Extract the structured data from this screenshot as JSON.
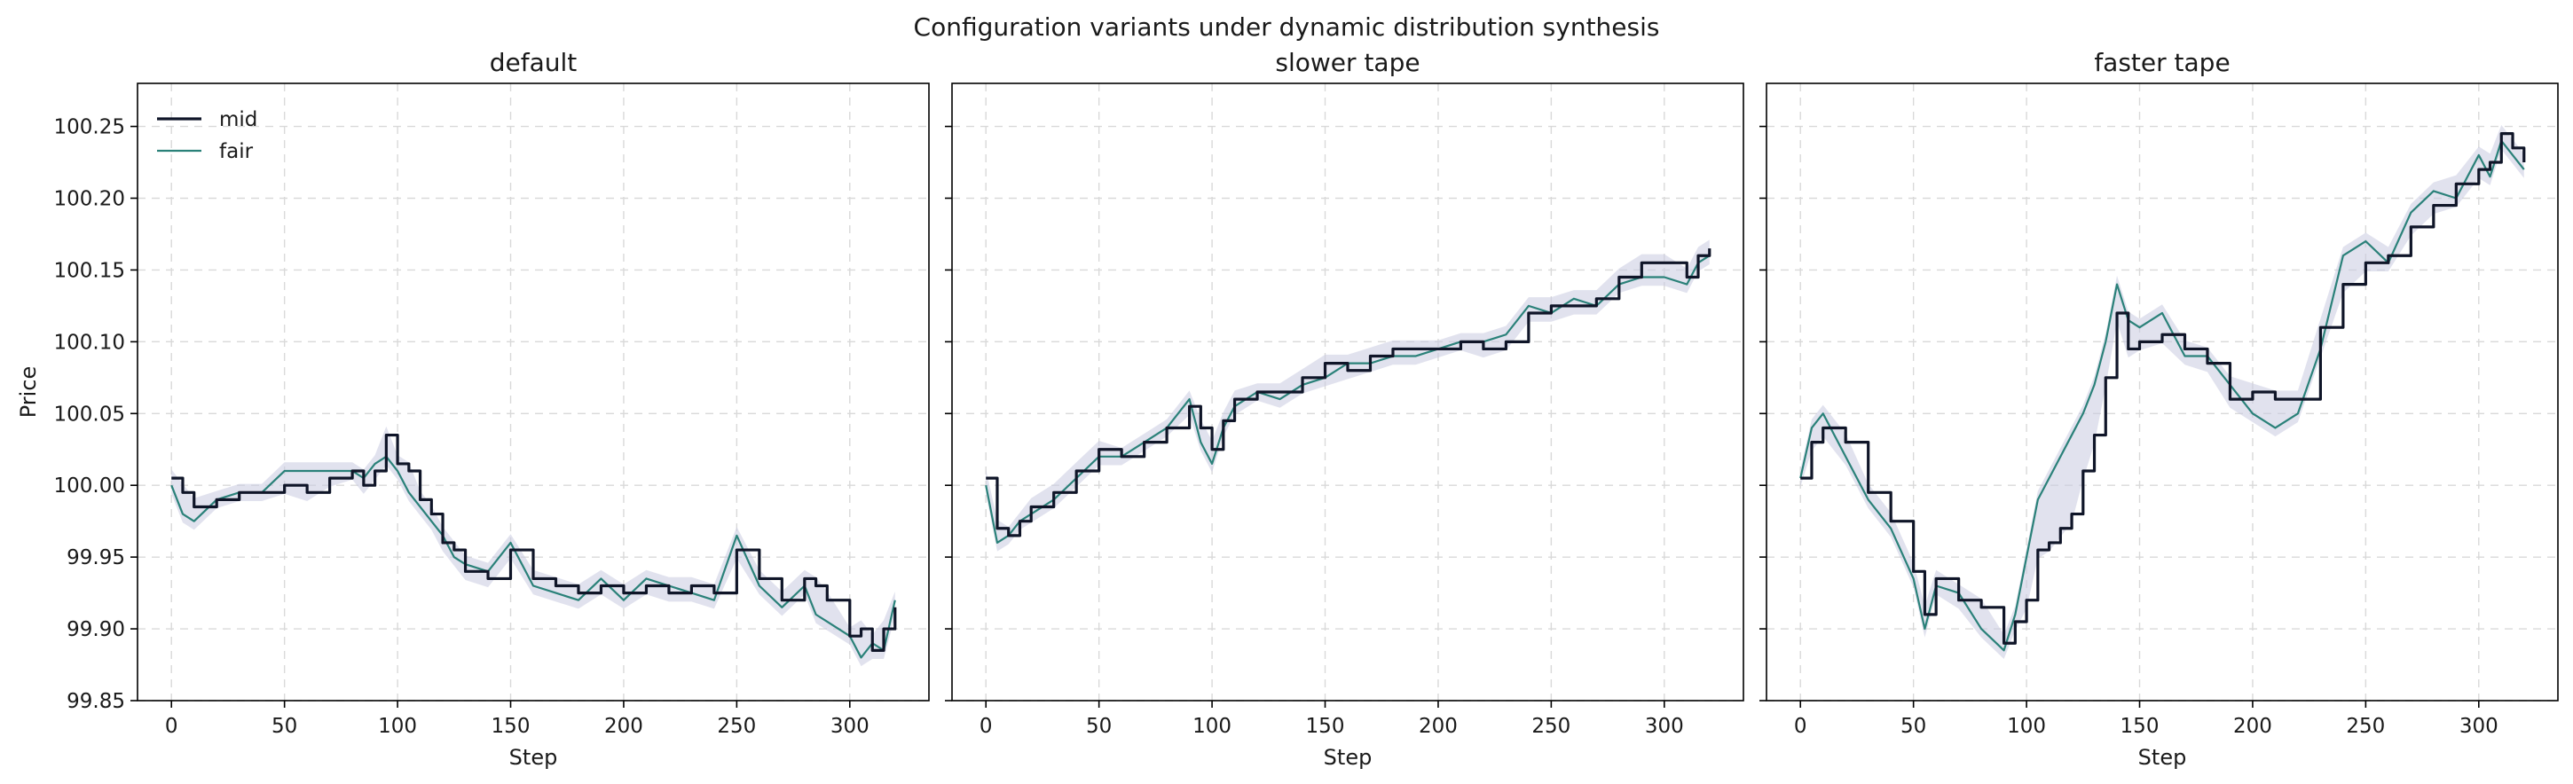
{
  "figure": {
    "title": "Configuration variants under dynamic distribution synthesis"
  },
  "colors": {
    "mid": "#0f1528",
    "fair": "#2a8179",
    "band": "#c9cbe0"
  },
  "chart_data": [
    {
      "type": "line",
      "title": "default",
      "xlabel": "Step",
      "ylabel": "Price",
      "xlim": [
        -15,
        335
      ],
      "ylim": [
        99.85,
        100.28
      ],
      "xticks": [
        "0",
        "50",
        "100",
        "150",
        "200",
        "250",
        "300"
      ],
      "yticks": [
        "99.85",
        "99.90",
        "99.95",
        "100.00",
        "100.05",
        "100.10",
        "100.15",
        "100.20",
        "100.25"
      ],
      "grid": true,
      "legend": {
        "position": "top-left",
        "entries": [
          "mid",
          "fair"
        ]
      },
      "series": [
        {
          "name": "mid",
          "x": [
            0,
            5,
            10,
            20,
            30,
            40,
            50,
            60,
            70,
            80,
            85,
            90,
            95,
            100,
            105,
            110,
            115,
            120,
            125,
            130,
            140,
            150,
            160,
            170,
            180,
            190,
            200,
            210,
            220,
            230,
            240,
            250,
            260,
            270,
            280,
            285,
            290,
            300,
            305,
            310,
            315,
            320
          ],
          "y": [
            100.005,
            99.995,
            99.985,
            99.99,
            99.995,
            99.995,
            100.0,
            99.995,
            100.005,
            100.01,
            100.0,
            100.01,
            100.035,
            100.015,
            100.01,
            99.99,
            99.98,
            99.96,
            99.955,
            99.94,
            99.935,
            99.955,
            99.935,
            99.93,
            99.925,
            99.93,
            99.925,
            99.93,
            99.925,
            99.93,
            99.925,
            99.955,
            99.935,
            99.92,
            99.935,
            99.93,
            99.92,
            99.895,
            99.9,
            99.885,
            99.9,
            99.915
          ]
        },
        {
          "name": "fair",
          "x": [
            0,
            5,
            10,
            20,
            30,
            40,
            50,
            60,
            70,
            80,
            85,
            90,
            95,
            100,
            105,
            110,
            115,
            120,
            125,
            130,
            140,
            150,
            160,
            170,
            180,
            190,
            200,
            210,
            220,
            230,
            240,
            250,
            260,
            270,
            280,
            285,
            290,
            300,
            305,
            310,
            315,
            320
          ],
          "y": [
            100.0,
            99.98,
            99.975,
            99.99,
            99.995,
            99.995,
            100.01,
            100.01,
            100.01,
            100.01,
            100.005,
            100.015,
            100.02,
            100.01,
            99.995,
            99.985,
            99.975,
            99.965,
            99.95,
            99.945,
            99.94,
            99.96,
            99.93,
            99.925,
            99.92,
            99.935,
            99.92,
            99.935,
            99.93,
            99.925,
            99.92,
            99.965,
            99.93,
            99.915,
            99.93,
            99.91,
            99.905,
            99.895,
            99.88,
            99.89,
            99.885,
            99.92
          ]
        }
      ]
    },
    {
      "type": "line",
      "title": "slower tape",
      "xlabel": "Step",
      "ylabel": "",
      "xlim": [
        -15,
        335
      ],
      "ylim": [
        99.85,
        100.28
      ],
      "xticks": [
        "0",
        "50",
        "100",
        "150",
        "200",
        "250",
        "300"
      ],
      "yticks": [],
      "grid": true,
      "series": [
        {
          "name": "mid",
          "x": [
            0,
            5,
            10,
            15,
            20,
            30,
            40,
            50,
            60,
            70,
            80,
            90,
            95,
            100,
            105,
            110,
            120,
            130,
            140,
            150,
            160,
            170,
            180,
            190,
            200,
            210,
            220,
            230,
            240,
            250,
            260,
            270,
            280,
            290,
            300,
            310,
            315,
            320
          ],
          "y": [
            100.005,
            99.97,
            99.965,
            99.975,
            99.985,
            99.995,
            100.01,
            100.025,
            100.02,
            100.03,
            100.04,
            100.055,
            100.04,
            100.025,
            100.045,
            100.06,
            100.065,
            100.065,
            100.075,
            100.085,
            100.08,
            100.09,
            100.095,
            100.095,
            100.095,
            100.1,
            100.095,
            100.1,
            100.12,
            100.125,
            100.125,
            100.13,
            100.145,
            100.155,
            100.155,
            100.145,
            100.16,
            100.165
          ]
        },
        {
          "name": "fair",
          "x": [
            0,
            5,
            10,
            15,
            20,
            30,
            40,
            50,
            60,
            70,
            80,
            90,
            95,
            100,
            105,
            110,
            120,
            130,
            140,
            150,
            160,
            170,
            180,
            190,
            200,
            210,
            220,
            230,
            240,
            250,
            260,
            270,
            280,
            290,
            300,
            310,
            315,
            320
          ],
          "y": [
            100.0,
            99.96,
            99.965,
            99.975,
            99.98,
            99.99,
            100.005,
            100.02,
            100.02,
            100.03,
            100.04,
            100.06,
            100.03,
            100.015,
            100.04,
            100.055,
            100.065,
            100.06,
            100.07,
            100.075,
            100.085,
            100.085,
            100.09,
            100.09,
            100.095,
            100.1,
            100.1,
            100.105,
            100.125,
            100.12,
            100.13,
            100.125,
            100.14,
            100.145,
            100.145,
            100.14,
            100.155,
            100.16
          ]
        }
      ]
    },
    {
      "type": "line",
      "title": "faster tape",
      "xlabel": "Step",
      "ylabel": "",
      "xlim": [
        -15,
        335
      ],
      "ylim": [
        99.85,
        100.28
      ],
      "xticks": [
        "0",
        "50",
        "100",
        "150",
        "200",
        "250",
        "300"
      ],
      "yticks": [],
      "grid": true,
      "series": [
        {
          "name": "mid",
          "x": [
            0,
            5,
            10,
            20,
            30,
            40,
            50,
            55,
            60,
            70,
            80,
            90,
            95,
            100,
            105,
            110,
            115,
            120,
            125,
            130,
            135,
            140,
            145,
            150,
            160,
            170,
            180,
            190,
            200,
            210,
            220,
            230,
            240,
            250,
            260,
            270,
            280,
            290,
            300,
            305,
            310,
            315,
            320
          ],
          "y": [
            100.005,
            100.03,
            100.04,
            100.03,
            99.995,
            99.975,
            99.94,
            99.91,
            99.935,
            99.92,
            99.915,
            99.89,
            99.905,
            99.92,
            99.955,
            99.96,
            99.97,
            99.98,
            100.01,
            100.035,
            100.075,
            100.12,
            100.095,
            100.1,
            100.105,
            100.095,
            100.085,
            100.06,
            100.065,
            100.06,
            100.06,
            100.11,
            100.14,
            100.155,
            100.16,
            100.18,
            100.195,
            100.21,
            100.22,
            100.225,
            100.245,
            100.235,
            100.225
          ]
        },
        {
          "name": "fair",
          "x": [
            0,
            5,
            10,
            20,
            30,
            40,
            50,
            55,
            60,
            70,
            80,
            90,
            95,
            100,
            105,
            110,
            115,
            120,
            125,
            130,
            135,
            140,
            145,
            150,
            160,
            170,
            180,
            190,
            200,
            210,
            220,
            230,
            240,
            250,
            260,
            270,
            280,
            290,
            300,
            305,
            310,
            315,
            320
          ],
          "y": [
            100.005,
            100.04,
            100.05,
            100.02,
            99.99,
            99.97,
            99.935,
            99.9,
            99.93,
            99.925,
            99.9,
            99.885,
            99.91,
            99.95,
            99.99,
            100.005,
            100.02,
            100.035,
            100.05,
            100.07,
            100.1,
            100.14,
            100.115,
            100.11,
            100.12,
            100.09,
            100.09,
            100.07,
            100.05,
            100.04,
            100.05,
            100.095,
            100.16,
            100.17,
            100.155,
            100.19,
            100.205,
            100.2,
            100.23,
            100.215,
            100.24,
            100.23,
            100.22
          ]
        }
      ]
    }
  ]
}
